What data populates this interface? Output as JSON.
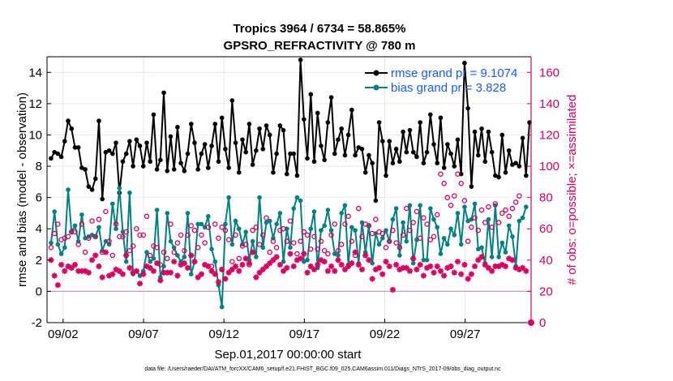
{
  "chart_data": {
    "type": "line",
    "title": "Tropics 3964 / 6734 = 58.865%",
    "subtitle": "GPSRO_REFRACTIVITY @ 780 m",
    "xlabel": "Sep.01,2017 00:00:00 start",
    "ylabel": "rmse and bias (model - observation)",
    "y2label": "# of obs: o=possible; ×=assimilated",
    "footnote": "data file: /Users/raeder/DAI/ATM_forcXX/CAM6_setup/f.e21.FHIST_BGC.f09_025.CAM6assim.011/Diags_NTrS_2017-09/obs_diag_output.nc",
    "xlim": [
      1.0,
      31.1
    ],
    "ylim": [
      -2,
      15
    ],
    "y2lim": [
      0,
      170
    ],
    "xticks": [
      2,
      7,
      12,
      17,
      22,
      27
    ],
    "xticklabels": [
      "09/02",
      "09/07",
      "09/12",
      "09/17",
      "09/22",
      "09/27"
    ],
    "yticks": [
      -2,
      0,
      2,
      4,
      6,
      8,
      10,
      12,
      14
    ],
    "y2ticks": [
      0,
      20,
      40,
      60,
      80,
      100,
      120,
      140,
      160
    ],
    "colors": {
      "rmse": "#000000",
      "bias": "#008080",
      "obs": "#d6005e",
      "zero": "#c8a0a8"
    },
    "legend": [
      {
        "name": "rmse grand pr = 9.1074",
        "color": "#000000"
      },
      {
        "name": "bias grand pr = 3.828",
        "color": "#008080"
      }
    ],
    "series": [
      {
        "name": "rmse",
        "axis": "left",
        "style": "line-dot",
        "color": "#000000",
        "values": [
          8.5,
          8.9,
          8.8,
          8.6,
          9.6,
          10.9,
          10.4,
          9.2,
          9.2,
          7.9,
          7.8,
          6.7,
          6.5,
          7.2,
          10.9,
          5.9,
          8.9,
          9.0,
          8.8,
          9.5,
          6.3,
          8.3,
          8.8,
          9.6,
          8.0,
          9.7,
          9.3,
          8.0,
          9.5,
          8.3,
          11.3,
          7.8,
          8.4,
          12.7,
          7.7,
          9.9,
          7.8,
          10.5,
          8.2,
          7.7,
          8.8,
          10.7,
          9.5,
          7.8,
          8.8,
          9.4,
          7.9,
          9.3,
          10.7,
          8.3,
          11.1,
          9.1,
          7.9,
          12.2,
          9.5,
          7.6,
          9.7,
          8.9,
          10.7,
          8.1,
          9.0,
          10.4,
          9.1,
          10.6,
          10.0,
          7.6,
          8.8,
          10.6,
          10.3,
          7.5,
          8.8,
          8.8,
          7.4,
          14.8,
          11.0,
          8.5,
          12.6,
          8.3,
          11.4,
          9.3,
          8.4,
          10.8,
          12.4,
          8.8,
          9.7,
          10.4,
          8.7,
          10.0,
          11.6,
          8.7,
          9.2,
          9.1,
          7.6,
          8.7,
          8.2,
          5.8,
          10.8,
          9.6,
          7.4,
          9.6,
          8.2,
          9.1,
          8.3,
          10.2,
          8.9,
          10.3,
          8.9,
          8.6,
          10.8,
          8.2,
          8.9,
          11.3,
          9.4,
          8.2,
          11.1,
          7.9,
          9.4,
          8.8,
          8.0,
          9.7,
          7.5,
          14.6,
          11.7,
          6.7,
          10.2,
          8.7,
          10.4,
          8.3,
          10.2,
          8.9,
          7.4,
          7.3,
          10.0,
          7.6,
          9.0,
          8.1,
          8.2,
          8.0,
          9.8,
          7.4,
          10.8
        ]
      },
      {
        "name": "bias",
        "axis": "left",
        "style": "line-dot",
        "color": "#008080",
        "values": [
          3.1,
          5.1,
          3.0,
          2.4,
          2.8,
          6.5,
          3.8,
          4.2,
          3.2,
          4.9,
          3.4,
          3.5,
          3.6,
          3.5,
          4.1,
          2.6,
          3.2,
          3.0,
          5.6,
          4.0,
          6.6,
          3.8,
          1.9,
          6.3,
          1.1,
          1.3,
          1.0,
          1.3,
          2.5,
          1.9,
          2.1,
          5.2,
          0.9,
          1.6,
          5.0,
          3.2,
          2.8,
          2.3,
          1.9,
          2.2,
          5.0,
          1.1,
          1.9,
          4.3,
          4.3,
          4.1,
          4.8,
          2.7,
          1.9,
          0.4,
          -1.0,
          4.3,
          6.0,
          3.0,
          4.5,
          4.0,
          3.0,
          3.8,
          2.0,
          3.2,
          2.2,
          6.0,
          2.8,
          4.4,
          4.5,
          3.4,
          4.3,
          5.0,
          1.9,
          4.0,
          2.8,
          5.3,
          6.0,
          5.8,
          1.9,
          2.0,
          4.0,
          5.1,
          1.5,
          3.9,
          4.2,
          5.2,
          3.9,
          2.4,
          2.3,
          5.0,
          5.5,
          1.7,
          4.1,
          3.9,
          1.8,
          4.4,
          2.5,
          4.2,
          1.8,
          3.7,
          3.0,
          3.4,
          3.9,
          3.2,
          4.6,
          5.3,
          2.3,
          4.4,
          3.2,
          5.5,
          1.8,
          3.3,
          5.5,
          2.0,
          2.0,
          5.3,
          4.6,
          4.1,
          2.4,
          3.4,
          3.0,
          4.0,
          3.6,
          5.0,
          3.0,
          5.4,
          4.5,
          4.6,
          5.6,
          2.7,
          2.8,
          1.8,
          4.6,
          2.2,
          5.5,
          2.2,
          3.1,
          2.5,
          4.2,
          3.5,
          1.6,
          4.5,
          4.7,
          5.4
        ]
      },
      {
        "name": "possible",
        "axis": "right",
        "style": "circle",
        "color": "#d6005e",
        "values": [
          48,
          57,
          63,
          53,
          54,
          55,
          58,
          58,
          50,
          63,
          45,
          54,
          65,
          55,
          66,
          45,
          71,
          52,
          43,
          63,
          55,
          55,
          58,
          46,
          49,
          60,
          56,
          56,
          68,
          43,
          49,
          48,
          37,
          45,
          41,
          63,
          45,
          51,
          56,
          46,
          56,
          62,
          59,
          48,
          56,
          51,
          61,
          36,
          63,
          54,
          61,
          59,
          53,
          39,
          56,
          41,
          49,
          50,
          37,
          59,
          61,
          50,
          56,
          67,
          45,
          52,
          48,
          59,
          60,
          52,
          65,
          51,
          44,
          52,
          58,
          56,
          47,
          55,
          47,
          52,
          46,
          44,
          56,
          63,
          46,
          50,
          63,
          68,
          52,
          43,
          73,
          55,
          63,
          62,
          57,
          66,
          58,
          57,
          48,
          52,
          59,
          51,
          48,
          56,
          73,
          59,
          64,
          71,
          54,
          67,
          63,
          53,
          55,
          69,
          95,
          89,
          80,
          75,
          81,
          95,
          89,
          78,
          52,
          61,
          67,
          59,
          72,
          64,
          74,
          61,
          76,
          64,
          70,
          72,
          68,
          73,
          77,
          81
        ]
      },
      {
        "name": "assimilated",
        "axis": "right",
        "style": "asterisk",
        "color": "#d6005e",
        "values": [
          40,
          30,
          24,
          37,
          33,
          36,
          35,
          37,
          33,
          33,
          33,
          32,
          40,
          43,
          36,
          29,
          45,
          30,
          31,
          34,
          33,
          31,
          43,
          35,
          32,
          33,
          25,
          31,
          36,
          35,
          33,
          38,
          27,
          32,
          32,
          32,
          39,
          30,
          37,
          38,
          35,
          43,
          39,
          29,
          31,
          37,
          36,
          33,
          31,
          26,
          34,
          28,
          32,
          34,
          36,
          33,
          37,
          41,
          38,
          45,
          29,
          32,
          34,
          36,
          38,
          40,
          42,
          37,
          33,
          35,
          44,
          36,
          40,
          41,
          44,
          32,
          36,
          34,
          37,
          40,
          39,
          33,
          36,
          33,
          40,
          37,
          34,
          36,
          38,
          45,
          37,
          34,
          43,
          40,
          28,
          34,
          35,
          31,
          39,
          36,
          21,
          37,
          34,
          35,
          35,
          33,
          41,
          34,
          37,
          30,
          35,
          36,
          32,
          36,
          33,
          30,
          35,
          36,
          32,
          39,
          31,
          37,
          28,
          31,
          36,
          40,
          42,
          37,
          35,
          33,
          36,
          36,
          37,
          36,
          41,
          40,
          35,
          34,
          35,
          33
        ]
      }
    ]
  }
}
